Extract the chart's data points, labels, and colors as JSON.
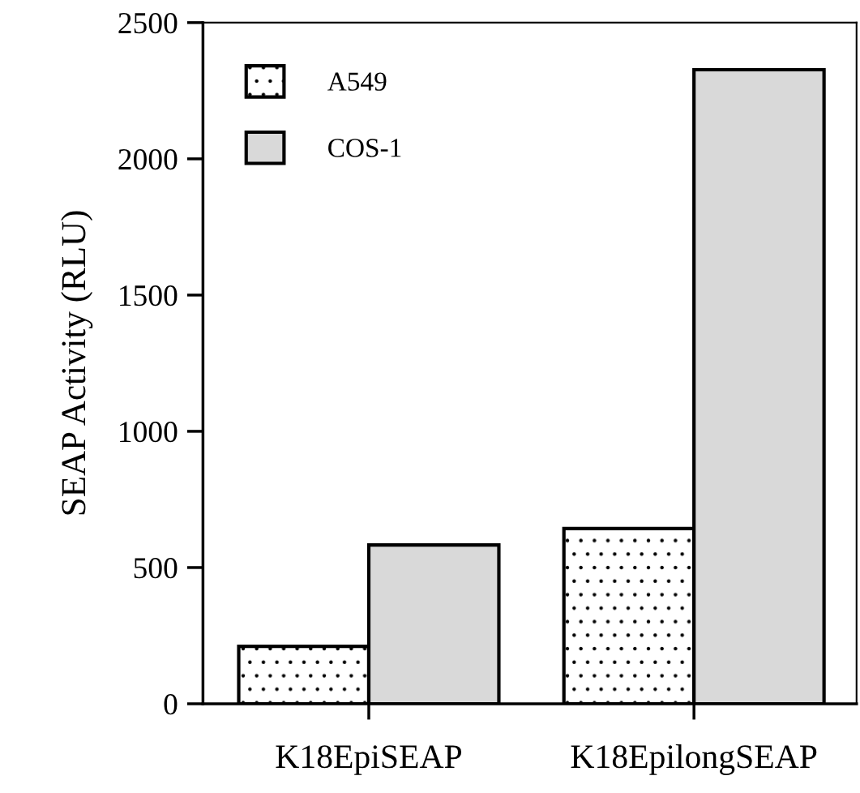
{
  "chart_data": {
    "type": "bar",
    "ylabel": "SEAP Activity (RLU)",
    "categories": [
      "K18EpiSEAP",
      "K18EpilongSEAP"
    ],
    "series": [
      {
        "name": "A549",
        "color": "#ffffff",
        "values": [
          211,
          643
        ]
      },
      {
        "name": "COS-1",
        "color": "#d9d9d9",
        "values": [
          583,
          2327
        ]
      }
    ],
    "ylim": [
      0,
      2500
    ],
    "yticks": [
      0,
      500,
      1000,
      1500,
      2000,
      2500
    ],
    "grid": false,
    "legend": "top left"
  }
}
